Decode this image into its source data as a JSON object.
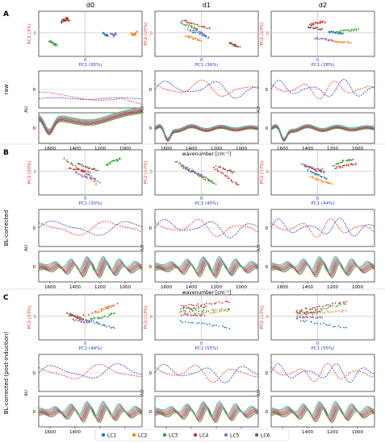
{
  "columns": [
    "d0",
    "d1",
    "d2"
  ],
  "panel_letters": [
    "A",
    "B",
    "C"
  ],
  "row_labels": [
    "raw",
    "BL-corrected",
    "BL-corrected (post-induction)"
  ],
  "colors": {
    "pc1": "#1f3fd6",
    "pc2": "#e8322a",
    "LC1": "#1f77b4",
    "LC2": "#ff7f0e",
    "LC3": "#2ca02c",
    "LC4": "#d62728",
    "LC5": "#9467bd",
    "LC6": "#8c564b"
  },
  "axis": {
    "au_label": "AU",
    "zero_tick": "0",
    "wavenumber_label": "wavenumber [cm⁻¹]",
    "x_ticks": [
      "1600",
      "1400",
      "1200",
      "1000"
    ]
  },
  "legend": [
    "LC1",
    "LC2",
    "LC3",
    "LC4",
    "LC5",
    "LC6"
  ],
  "chart_data": [
    {
      "type": "scatter",
      "group": "A",
      "column": "d0",
      "xlabel": "PC1 (95%)",
      "ylabel": "PC2 (3%)",
      "series": [
        {
          "name": "LC1",
          "values": [
            [
              0.5,
              0.05
            ],
            [
              0.6,
              -0.05
            ],
            [
              0.7,
              -0.1
            ]
          ]
        },
        {
          "name": "LC2",
          "values": [
            [
              1.6,
              0.0
            ],
            [
              1.7,
              -0.05
            ],
            [
              1.8,
              0.1
            ]
          ]
        },
        {
          "name": "LC3",
          "values": [
            [
              -1.6,
              -0.3
            ],
            [
              -1.4,
              -0.45
            ],
            [
              -1.3,
              -0.5
            ]
          ]
        },
        {
          "name": "LC4",
          "values": [
            [
              -1.0,
              0.6
            ],
            [
              -0.9,
              0.7
            ],
            [
              -0.8,
              0.55
            ]
          ]
        },
        {
          "name": "LC5",
          "values": [
            [
              0.8,
              0.0
            ],
            [
              0.9,
              -0.1
            ],
            [
              1.0,
              0.05
            ]
          ]
        },
        {
          "name": "LC6",
          "values": [
            [
              -1.1,
              0.5
            ],
            [
              -1.05,
              0.65
            ],
            [
              -0.95,
              0.6
            ]
          ]
        }
      ]
    },
    {
      "type": "scatter",
      "group": "A",
      "column": "d1",
      "xlabel": "PC1 (36%)",
      "ylabel": "PC2 (25%)",
      "series": [
        {
          "name": "LC1",
          "values": [
            [
              -0.6,
              0.1
            ],
            [
              -0.2,
              0.0
            ],
            [
              0.1,
              -0.2
            ]
          ]
        },
        {
          "name": "LC2",
          "values": [
            [
              -0.8,
              -0.1
            ],
            [
              -0.5,
              -0.2
            ],
            [
              -0.2,
              -0.3
            ]
          ]
        },
        {
          "name": "LC3",
          "values": [
            [
              -1.0,
              0.5
            ],
            [
              -0.6,
              0.3
            ],
            [
              -0.3,
              0.2
            ]
          ]
        },
        {
          "name": "LC4",
          "values": [
            [
              -0.9,
              0.6
            ],
            [
              -0.4,
              0.4
            ],
            [
              0.2,
              0.2
            ]
          ]
        },
        {
          "name": "LC5",
          "values": [
            [
              -0.7,
              0.2
            ],
            [
              -0.3,
              0.1
            ],
            [
              0.0,
              -0.1
            ]
          ]
        },
        {
          "name": "LC6",
          "values": [
            [
              0.9,
              -0.4
            ],
            [
              1.1,
              -0.5
            ],
            [
              1.3,
              -0.6
            ]
          ]
        }
      ]
    },
    {
      "type": "scatter",
      "group": "A",
      "column": "d2",
      "xlabel": "PC1 (28%)",
      "ylabel": "PC2 (23%)",
      "series": [
        {
          "name": "LC1",
          "values": [
            [
              0.2,
              0.1
            ],
            [
              0.5,
              0.05
            ],
            [
              0.8,
              0.0
            ]
          ]
        },
        {
          "name": "LC2",
          "values": [
            [
              0.3,
              -0.3
            ],
            [
              0.7,
              -0.35
            ],
            [
              1.1,
              -0.4
            ]
          ]
        },
        {
          "name": "LC3",
          "values": [
            [
              0.6,
              0.1
            ],
            [
              1.0,
              0.15
            ],
            [
              1.4,
              0.2
            ]
          ]
        },
        {
          "name": "LC4",
          "values": [
            [
              -0.5,
              0.4
            ],
            [
              -0.2,
              0.5
            ],
            [
              0.1,
              0.55
            ]
          ]
        },
        {
          "name": "LC5",
          "values": [
            [
              -0.3,
              -0.2
            ],
            [
              0.1,
              -0.25
            ],
            [
              0.4,
              -0.3
            ]
          ]
        },
        {
          "name": "LC6",
          "values": [
            [
              -0.6,
              0.3
            ],
            [
              -0.3,
              0.25
            ],
            [
              0.0,
              0.2
            ]
          ]
        }
      ]
    },
    {
      "type": "scatter",
      "group": "B",
      "column": "d0",
      "xlabel": "PC1 (30%)",
      "ylabel": "PC2 (20%)",
      "series": [
        {
          "name": "LC1",
          "values": [
            [
              -1.0,
              0.6
            ],
            [
              -0.2,
              0.0
            ],
            [
              0.4,
              -0.5
            ]
          ]
        },
        {
          "name": "LC2",
          "values": [
            [
              -0.9,
              0.5
            ],
            [
              -0.1,
              -0.1
            ],
            [
              0.3,
              -0.6
            ]
          ]
        },
        {
          "name": "LC3",
          "values": [
            [
              0.6,
              0.3
            ],
            [
              0.9,
              0.5
            ],
            [
              1.2,
              0.6
            ]
          ]
        },
        {
          "name": "LC4",
          "values": [
            [
              -0.8,
              0.2
            ],
            [
              -0.4,
              0.1
            ],
            [
              0.0,
              0.0
            ]
          ]
        },
        {
          "name": "LC5",
          "values": [
            [
              -0.6,
              0.0
            ],
            [
              -0.2,
              -0.2
            ],
            [
              0.2,
              -0.3
            ]
          ]
        },
        {
          "name": "LC6",
          "values": [
            [
              -0.5,
              0.4
            ],
            [
              -0.1,
              0.2
            ],
            [
              0.3,
              0.1
            ]
          ]
        }
      ]
    },
    {
      "type": "scatter",
      "group": "B",
      "column": "d1",
      "xlabel": "PC1 (45%)",
      "ylabel": "PC2 (17%)",
      "series": [
        {
          "name": "LC1",
          "values": [
            [
              -1.2,
              0.5
            ],
            [
              -0.4,
              0.0
            ],
            [
              0.2,
              -0.4
            ]
          ]
        },
        {
          "name": "LC2",
          "values": [
            [
              -1.1,
              0.4
            ],
            [
              -0.3,
              -0.1
            ],
            [
              0.3,
              -0.5
            ]
          ]
        },
        {
          "name": "LC3",
          "values": [
            [
              -1.0,
              0.3
            ],
            [
              -0.2,
              -0.2
            ],
            [
              0.4,
              -0.6
            ]
          ]
        },
        {
          "name": "LC4",
          "values": [
            [
              0.3,
              0.2
            ],
            [
              0.8,
              -0.2
            ],
            [
              1.3,
              -0.6
            ]
          ]
        },
        {
          "name": "LC5",
          "values": [
            [
              -0.9,
              0.2
            ],
            [
              -0.5,
              0.0
            ],
            [
              -0.1,
              -0.2
            ]
          ]
        },
        {
          "name": "LC6",
          "values": [
            [
              0.4,
              0.3
            ],
            [
              0.8,
              0.1
            ],
            [
              1.1,
              0.0
            ]
          ]
        }
      ]
    },
    {
      "type": "scatter",
      "group": "B",
      "column": "d2",
      "xlabel": "PC1 (44%)",
      "ylabel": "PC2 (17%)",
      "series": [
        {
          "name": "LC1",
          "values": [
            [
              -0.6,
              0.1
            ],
            [
              -0.2,
              -0.1
            ],
            [
              0.2,
              -0.3
            ]
          ]
        },
        {
          "name": "LC2",
          "values": [
            [
              -0.5,
              -0.2
            ],
            [
              0.0,
              -0.4
            ],
            [
              0.4,
              -0.5
            ]
          ]
        },
        {
          "name": "LC3",
          "values": [
            [
              0.4,
              0.3
            ],
            [
              0.8,
              0.5
            ],
            [
              1.2,
              0.6
            ]
          ]
        },
        {
          "name": "LC4",
          "values": [
            [
              0.5,
              0.2
            ],
            [
              0.9,
              0.3
            ],
            [
              1.3,
              0.4
            ]
          ]
        },
        {
          "name": "LC5",
          "values": [
            [
              -0.8,
              0.4
            ],
            [
              -0.4,
              0.2
            ],
            [
              0.0,
              0.1
            ]
          ]
        },
        {
          "name": "LC6",
          "values": [
            [
              -0.7,
              0.3
            ],
            [
              -0.3,
              0.1
            ],
            [
              0.1,
              0.0
            ]
          ]
        }
      ]
    },
    {
      "type": "scatter",
      "group": "C",
      "column": "d0",
      "xlabel": "PC1 (44%)",
      "ylabel": "PC2 (23%)",
      "series": [
        {
          "name": "LC1",
          "values": [
            [
              -0.2,
              -0.1
            ],
            [
              0.4,
              -0.3
            ],
            [
              1.0,
              -0.5
            ]
          ]
        },
        {
          "name": "LC2",
          "values": [
            [
              0.2,
              0.2
            ],
            [
              0.6,
              0.4
            ],
            [
              0.9,
              0.5
            ]
          ]
        },
        {
          "name": "LC3",
          "values": [
            [
              0.0,
              -0.1
            ],
            [
              0.5,
              0.0
            ],
            [
              1.0,
              0.2
            ]
          ]
        },
        {
          "name": "LC4",
          "values": [
            [
              -0.8,
              0.1
            ],
            [
              -0.4,
              0.0
            ],
            [
              1.2,
              0.7
            ]
          ]
        },
        {
          "name": "LC5",
          "values": [
            [
              -0.7,
              -0.1
            ],
            [
              -0.3,
              -0.2
            ],
            [
              0.0,
              -0.2
            ]
          ]
        },
        {
          "name": "LC6",
          "values": [
            [
              -0.9,
              0.2
            ],
            [
              -0.5,
              0.0
            ],
            [
              -0.2,
              -0.1
            ]
          ]
        }
      ]
    },
    {
      "type": "scatter",
      "group": "C",
      "column": "d1",
      "xlabel": "PC1 (55%)",
      "ylabel": "PC2 (13%)",
      "series": [
        {
          "name": "LC1",
          "values": [
            [
              -1.0,
              -0.2
            ],
            [
              0.0,
              -0.3
            ],
            [
              1.0,
              -0.5
            ]
          ]
        },
        {
          "name": "LC2",
          "values": [
            [
              -1.0,
              0.2
            ],
            [
              0.0,
              0.2
            ],
            [
              1.0,
              0.3
            ]
          ]
        },
        {
          "name": "LC3",
          "values": [
            [
              -1.0,
              0.3
            ],
            [
              0.0,
              0.3
            ],
            [
              1.0,
              0.4
            ]
          ]
        },
        {
          "name": "LC4",
          "values": [
            [
              -1.0,
              0.5
            ],
            [
              0.0,
              0.6
            ],
            [
              1.0,
              0.7
            ]
          ]
        },
        {
          "name": "LC5",
          "values": [
            [
              -1.0,
              0.1
            ],
            [
              -0.5,
              0.1
            ],
            [
              0.0,
              0.1
            ]
          ]
        },
        {
          "name": "LC6",
          "values": [
            [
              -1.0,
              0.4
            ],
            [
              -0.5,
              0.4
            ],
            [
              0.0,
              0.5
            ]
          ]
        }
      ]
    },
    {
      "type": "scatter",
      "group": "C",
      "column": "d2",
      "xlabel": "PC1 (55%)",
      "ylabel": "PC2 (13%)",
      "series": [
        {
          "name": "LC1",
          "values": [
            [
              -1.0,
              -0.1
            ],
            [
              0.0,
              -0.3
            ],
            [
              1.0,
              -0.5
            ]
          ]
        },
        {
          "name": "LC2",
          "values": [
            [
              -1.0,
              0.1
            ],
            [
              0.0,
              0.2
            ],
            [
              1.0,
              0.3
            ]
          ]
        },
        {
          "name": "LC3",
          "values": [
            [
              -1.0,
              0.2
            ],
            [
              0.0,
              0.4
            ],
            [
              1.0,
              0.6
            ]
          ]
        },
        {
          "name": "LC4",
          "values": [
            [
              -1.0,
              0.3
            ],
            [
              0.0,
              0.5
            ],
            [
              1.0,
              0.7
            ]
          ]
        },
        {
          "name": "LC5",
          "values": [
            [
              -1.0,
              0.0
            ],
            [
              -0.5,
              0.0
            ],
            [
              0.0,
              0.0
            ]
          ]
        },
        {
          "name": "LC6",
          "values": [
            [
              -1.0,
              0.2
            ],
            [
              -0.5,
              0.2
            ],
            [
              0.0,
              0.3
            ]
          ]
        }
      ]
    }
  ]
}
